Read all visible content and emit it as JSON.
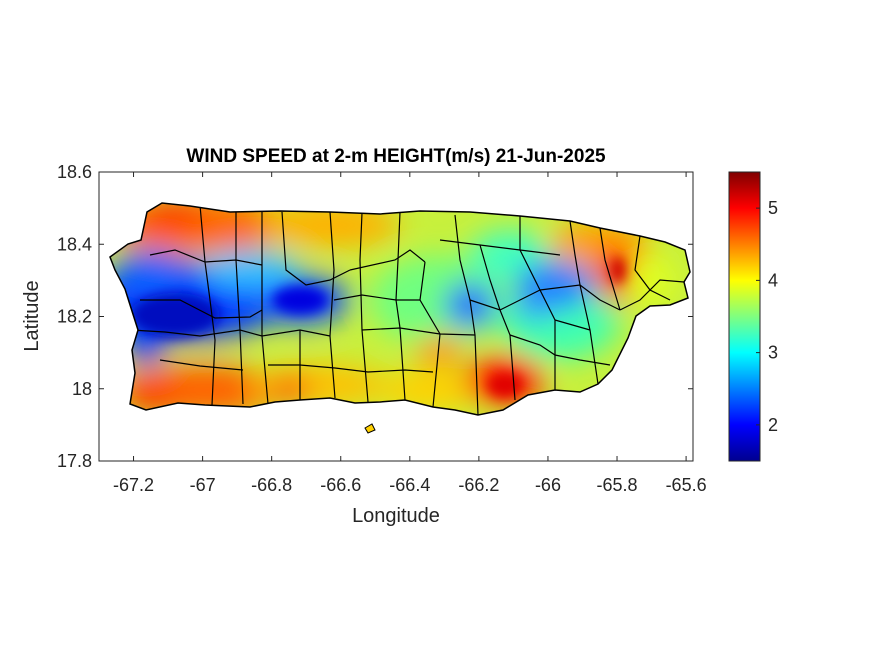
{
  "chart_data": {
    "type": "heatmap",
    "title": "WIND SPEED at 2-m HEIGHT(m/s) 21-Jun-2025",
    "xlabel": "Longitude",
    "ylabel": "Latitude",
    "xlim": [
      -67.3,
      -65.58
    ],
    "ylim": [
      17.8,
      18.6
    ],
    "x_ticks": [
      -67.2,
      -67,
      -66.8,
      -66.6,
      -66.4,
      -66.2,
      -66,
      -65.8,
      -65.6
    ],
    "x_tick_labels": [
      "-67.2",
      "-67",
      "-66.8",
      "-66.6",
      "-66.4",
      "-66.2",
      "-66",
      "-65.8",
      "-65.6"
    ],
    "y_ticks": [
      17.8,
      18,
      18.2,
      18.4,
      18.6
    ],
    "y_tick_labels": [
      "17.8",
      "18",
      "18.2",
      "18.4",
      "18.6"
    ],
    "colorbar": {
      "colormap": "jet",
      "range": [
        1.5,
        5.5
      ],
      "ticks": [
        2,
        3,
        4,
        5
      ],
      "tick_labels": [
        "2",
        "3",
        "4",
        "5"
      ]
    },
    "grid": false,
    "hotspots": [
      {
        "lon": -67.15,
        "lat": 18.2,
        "value": 1.6
      },
      {
        "lon": -66.7,
        "lat": 18.25,
        "value": 1.9
      },
      {
        "lon": -67.2,
        "lat": 18.35,
        "value": 2.1
      },
      {
        "lon": -66.25,
        "lat": 18.22,
        "value": 2.3
      },
      {
        "lon": -65.97,
        "lat": 18.28,
        "value": 2.3
      },
      {
        "lon": -66.15,
        "lat": 18.02,
        "value": 5.3
      },
      {
        "lon": -65.81,
        "lat": 18.33,
        "value": 5.4
      },
      {
        "lon": -67.05,
        "lat": 18.49,
        "value": 5.0
      },
      {
        "lon": -67.1,
        "lat": 17.96,
        "value": 5.0
      },
      {
        "lon": -66.8,
        "lat": 17.97,
        "value": 5.0
      }
    ]
  }
}
